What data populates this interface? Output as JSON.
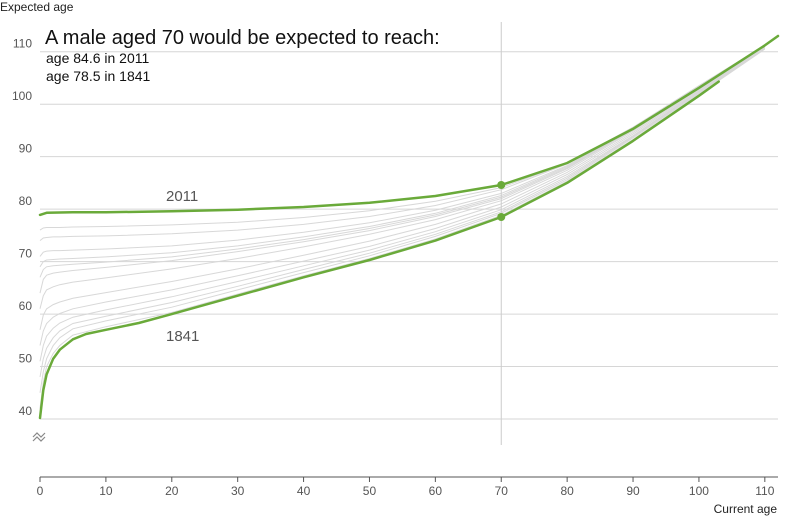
{
  "chart_data": {
    "type": "line",
    "title": "A male aged 70 would be expected to reach:",
    "annotation_lines": [
      "age 84.6 in 2011",
      "age 78.5 in 1841"
    ],
    "xlabel": "Current age",
    "ylabel": "Expected age",
    "xlim": [
      0,
      112
    ],
    "ylim": [
      40,
      113
    ],
    "x_ticks": [
      0,
      10,
      20,
      30,
      40,
      50,
      60,
      70,
      80,
      90,
      100,
      110
    ],
    "y_ticks": [
      40,
      50,
      60,
      70,
      80,
      90,
      100,
      110
    ],
    "y_axis_break": true,
    "highlight_x": 70,
    "colors": {
      "highlight": "#6aaa3a",
      "background_series": "#d8d8d8",
      "grid": "#d6d6d6",
      "marker_line": "#cccccc"
    },
    "series": [
      {
        "name": "2011",
        "highlight": true,
        "x": [
          0,
          1,
          5,
          10,
          20,
          30,
          40,
          50,
          60,
          70,
          80,
          90,
          100,
          110,
          112
        ],
        "y": [
          78.9,
          79.3,
          79.4,
          79.4,
          79.6,
          79.9,
          80.4,
          81.2,
          82.5,
          84.6,
          88.8,
          95.3,
          103.1,
          111.2,
          113
        ]
      },
      {
        "name": "1841",
        "highlight": true,
        "x": [
          0,
          0.5,
          1,
          2,
          3,
          5,
          7,
          10,
          15,
          20,
          30,
          40,
          50,
          60,
          70,
          80,
          90,
          100,
          103
        ],
        "y": [
          40.2,
          45.5,
          48.5,
          51.5,
          53.2,
          55.2,
          56.2,
          57.0,
          58.3,
          60.0,
          63.5,
          67.0,
          70.3,
          74.0,
          78.5,
          85.0,
          93.0,
          101.6,
          104.3
        ]
      },
      {
        "name": "",
        "x": [
          0,
          0.5,
          1,
          2,
          3,
          5,
          10,
          20,
          30,
          40,
          50,
          60,
          70,
          80,
          90,
          100,
          110
        ],
        "y": [
          42,
          47,
          50,
          52.5,
          54,
          56,
          57.6,
          60.3,
          63.8,
          67.3,
          70.6,
          74.3,
          78.8,
          85.3,
          93.3,
          101.9,
          110.5
        ]
      },
      {
        "name": "",
        "x": [
          0,
          0.5,
          1,
          2,
          3,
          5,
          10,
          20,
          30,
          40,
          50,
          60,
          70,
          80,
          90,
          100,
          110
        ],
        "y": [
          45,
          49,
          51.5,
          54,
          55.5,
          57.2,
          58.7,
          61.3,
          64.6,
          67.9,
          71.1,
          74.8,
          79.2,
          85.6,
          93.6,
          102.1,
          110.6
        ]
      },
      {
        "name": "",
        "x": [
          0,
          0.5,
          1,
          2,
          3,
          5,
          10,
          20,
          30,
          40,
          50,
          60,
          70,
          80,
          90,
          100,
          110
        ],
        "y": [
          48,
          51.5,
          53.5,
          55.5,
          56.8,
          58.2,
          59.6,
          62.2,
          65.3,
          68.5,
          71.6,
          75.2,
          79.5,
          85.9,
          93.8,
          102.3,
          110.7
        ]
      },
      {
        "name": "",
        "x": [
          0,
          0.5,
          1,
          2,
          3,
          5,
          10,
          20,
          30,
          40,
          50,
          60,
          70,
          80,
          90,
          100,
          110
        ],
        "y": [
          51,
          54,
          55.8,
          57.3,
          58.3,
          59.4,
          60.8,
          63.3,
          66.2,
          69.2,
          72.2,
          75.7,
          79.9,
          86.2,
          94.0,
          102.5,
          110.8
        ]
      },
      {
        "name": "",
        "x": [
          0,
          0.5,
          1,
          2,
          3,
          5,
          10,
          20,
          30,
          40,
          50,
          60,
          70,
          80,
          90,
          100,
          110
        ],
        "y": [
          54,
          56.8,
          58.2,
          59.4,
          60.1,
          61.0,
          62.3,
          64.6,
          67.3,
          70.1,
          72.9,
          76.3,
          80.4,
          86.6,
          94.3,
          102.7,
          110.9
        ]
      },
      {
        "name": "",
        "x": [
          0,
          0.5,
          1,
          2,
          3,
          5,
          10,
          20,
          30,
          40,
          50,
          60,
          70,
          80,
          90,
          100,
          110
        ],
        "y": [
          57,
          59.8,
          61.0,
          61.8,
          62.3,
          63.0,
          64.1,
          66.2,
          68.6,
          71.2,
          73.9,
          77.1,
          81.0,
          87.0,
          94.6,
          102.9,
          111.0
        ]
      },
      {
        "name": "",
        "x": [
          0,
          0.5,
          1,
          2,
          3,
          5,
          10,
          20,
          30,
          40,
          50,
          60,
          70,
          80,
          90,
          100,
          110
        ],
        "y": [
          61,
          63.5,
          64.6,
          65.2,
          65.6,
          66.1,
          66.9,
          68.6,
          70.6,
          72.8,
          75.2,
          78.0,
          81.6,
          87.4,
          94.9,
          103.1,
          111.1
        ]
      },
      {
        "name": "",
        "x": [
          0,
          0.5,
          1,
          2,
          3,
          5,
          10,
          20,
          30,
          40,
          50,
          60,
          70,
          80,
          90,
          100,
          110
        ],
        "y": [
          64,
          66.6,
          67.4,
          67.8,
          68.0,
          68.3,
          68.9,
          70.2,
          71.9,
          73.8,
          75.9,
          78.6,
          82.0,
          87.7,
          95.1,
          103.2,
          111.1
        ]
      },
      {
        "name": "",
        "x": [
          0,
          0.5,
          1,
          2,
          3,
          5,
          10,
          20,
          30,
          40,
          50,
          60,
          70,
          80,
          90,
          100,
          110
        ],
        "y": [
          67,
          68.5,
          69.0,
          69.2,
          69.3,
          69.5,
          69.9,
          70.9,
          72.4,
          74.2,
          76.3,
          78.9,
          82.3,
          87.9,
          95.2,
          103.3,
          111.2
        ]
      },
      {
        "name": "",
        "x": [
          0,
          0.5,
          1,
          2,
          3,
          5,
          10,
          20,
          30,
          40,
          50,
          60,
          70,
          80,
          90,
          100,
          110
        ],
        "y": [
          69,
          70.0,
          70.3,
          70.4,
          70.5,
          70.6,
          70.9,
          71.7,
          73.0,
          74.7,
          76.7,
          79.2,
          82.6,
          88.1,
          95.3,
          103.4,
          111.2
        ]
      },
      {
        "name": "",
        "x": [
          0,
          0.5,
          1,
          2,
          3,
          5,
          10,
          20,
          30,
          40,
          50,
          60,
          70,
          80,
          90,
          100,
          110
        ],
        "y": [
          71,
          71.8,
          72.0,
          72.1,
          72.1,
          72.2,
          72.4,
          73.0,
          74.1,
          75.6,
          77.4,
          79.8,
          83.0,
          88.3,
          95.4,
          103.4,
          111.2
        ]
      },
      {
        "name": "",
        "x": [
          0,
          0.5,
          1,
          2,
          3,
          5,
          10,
          20,
          30,
          40,
          50,
          60,
          70,
          80,
          90,
          100,
          110
        ],
        "y": [
          74,
          74.5,
          74.6,
          74.7,
          74.7,
          74.8,
          74.9,
          75.3,
          76.0,
          77.1,
          78.6,
          80.7,
          83.7,
          88.6,
          95.6,
          103.5,
          111.2
        ]
      },
      {
        "name": "",
        "x": [
          0,
          0.5,
          1,
          2,
          3,
          5,
          10,
          20,
          30,
          40,
          50,
          60,
          70,
          80,
          90,
          100,
          110
        ],
        "y": [
          76,
          76.4,
          76.5,
          76.5,
          76.5,
          76.6,
          76.7,
          77.0,
          77.5,
          78.4,
          79.7,
          81.5,
          84.1,
          88.7,
          95.6,
          103.5,
          111.2
        ]
      }
    ]
  }
}
